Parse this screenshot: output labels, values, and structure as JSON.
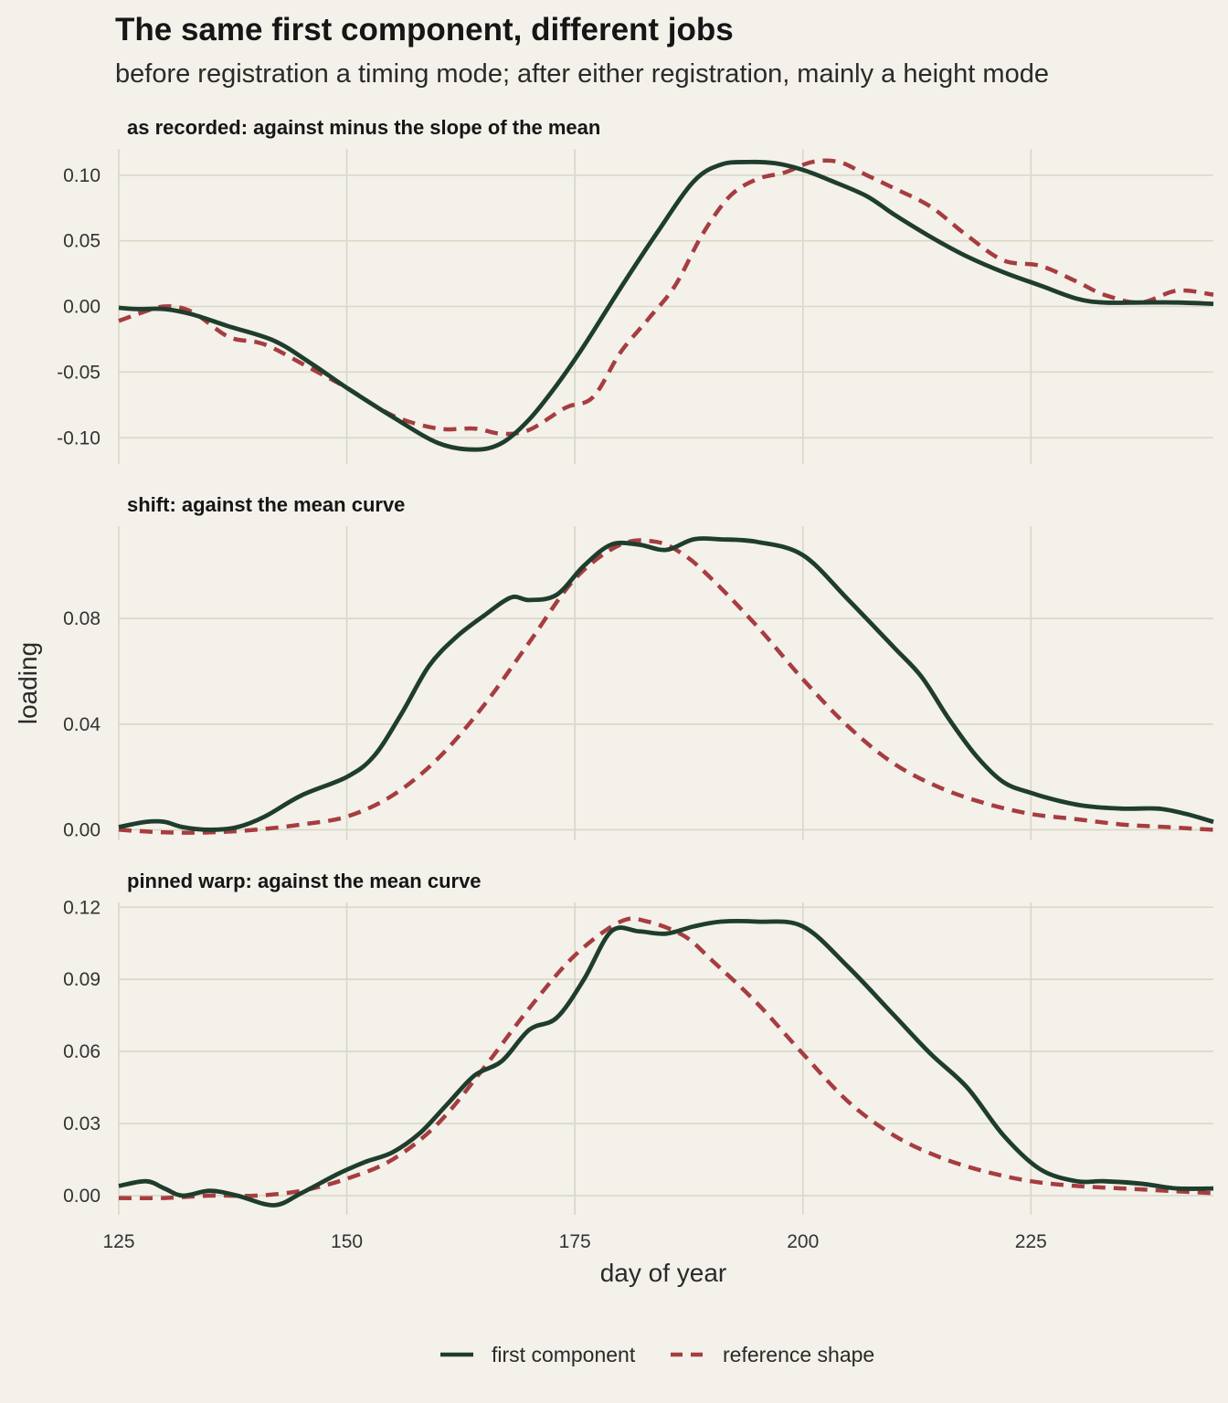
{
  "title": "The same first component, different jobs",
  "subtitle": "before registration a timing mode; after either registration, mainly a height mode",
  "colors": {
    "background": "#f3f1ea",
    "grid": "#d9d7c5",
    "first_component": "#1f3d2c",
    "reference_shape": "#a63d40"
  },
  "chart_data": {
    "type": "line",
    "xlabel": "day of year",
    "ylabel": "loading",
    "xlim": [
      125,
      245
    ],
    "x_ticks": [
      125,
      150,
      175,
      200,
      225
    ],
    "legend": {
      "placement": "bottom",
      "entries": [
        {
          "name": "first component",
          "style": "solid"
        },
        {
          "name": "reference shape",
          "style": "dashed"
        }
      ]
    },
    "panels": [
      {
        "strip": "as recorded: against minus the slope of the mean",
        "ylim": [
          -0.12,
          0.12
        ],
        "y_ticks": [
          -0.1,
          -0.05,
          0.0,
          0.05,
          0.1
        ],
        "y_tick_labels": [
          "-0.10",
          "-0.05",
          "0.00",
          "0.05",
          "0.10"
        ],
        "series": [
          {
            "name": "first component",
            "x": [
              125,
              127,
              130,
              133,
              137,
              142,
              146,
              150,
              155,
              160,
              164,
              167,
              170,
              173,
              176,
              180,
              184,
              188,
              191,
              194,
              197,
              200,
              203,
              207,
              210,
              214,
              218,
              222,
              226,
              230,
              233,
              237,
              241,
              245
            ],
            "y": [
              -0.001,
              -0.002,
              -0.002,
              -0.006,
              -0.015,
              -0.026,
              -0.043,
              -0.062,
              -0.084,
              -0.104,
              -0.109,
              -0.104,
              -0.086,
              -0.06,
              -0.03,
              0.014,
              0.056,
              0.095,
              0.108,
              0.11,
              0.109,
              0.104,
              0.096,
              0.084,
              0.07,
              0.053,
              0.038,
              0.026,
              0.016,
              0.006,
              0.003,
              0.003,
              0.003,
              0.002
            ]
          },
          {
            "name": "reference shape",
            "x": [
              125,
              127,
              130,
              133,
              137,
              140,
              142,
              146,
              150,
              155,
              160,
              164,
              167,
              170,
              174,
              177,
              180,
              183,
              186,
              189,
              192,
              195,
              198,
              201,
              204,
              207,
              210,
              214,
              218,
              222,
              226,
              230,
              233,
              237,
              241,
              245
            ],
            "y": [
              -0.011,
              -0.006,
              0.0,
              -0.004,
              -0.023,
              -0.027,
              -0.032,
              -0.047,
              -0.062,
              -0.083,
              -0.093,
              -0.093,
              -0.097,
              -0.094,
              -0.077,
              -0.069,
              -0.035,
              -0.01,
              0.016,
              0.055,
              0.084,
              0.097,
              0.102,
              0.11,
              0.11,
              0.1,
              0.09,
              0.076,
              0.054,
              0.035,
              0.031,
              0.019,
              0.009,
              0.003,
              0.012,
              0.009
            ]
          }
        ]
      },
      {
        "strip": "shift: against the mean curve",
        "ylim": [
          -0.004,
          0.115
        ],
        "y_ticks": [
          0.0,
          0.04,
          0.08
        ],
        "y_tick_labels": [
          "0.00",
          "0.04",
          "0.08"
        ],
        "series": [
          {
            "name": "first component",
            "x": [
              125,
              128,
              130,
              132,
              135,
              138,
              141,
              145,
              150,
              153,
              156,
              159,
              162,
              165,
              168,
              170,
              173,
              176,
              179,
              182,
              185,
              188,
              191,
              195,
              200,
              205,
              210,
              213,
              216,
              219,
              222,
              225,
              228,
              231,
              235,
              239,
              242,
              245
            ],
            "y": [
              0.001,
              0.003,
              0.003,
              0.001,
              0.0,
              0.001,
              0.005,
              0.013,
              0.02,
              0.028,
              0.044,
              0.062,
              0.073,
              0.081,
              0.088,
              0.087,
              0.089,
              0.1,
              0.108,
              0.108,
              0.106,
              0.11,
              0.11,
              0.109,
              0.104,
              0.087,
              0.069,
              0.058,
              0.042,
              0.028,
              0.018,
              0.014,
              0.011,
              0.009,
              0.008,
              0.008,
              0.006,
              0.003
            ]
          },
          {
            "name": "reference shape",
            "x": [
              125,
              130,
              135,
              140,
              145,
              150,
              155,
              160,
              165,
              170,
              175,
              180,
              184,
              187,
              190,
              195,
              200,
              205,
              210,
              215,
              220,
              225,
              230,
              235,
              240,
              245
            ],
            "y": [
              0.0,
              -0.001,
              -0.001,
              0.0,
              0.002,
              0.005,
              0.013,
              0.027,
              0.047,
              0.071,
              0.095,
              0.108,
              0.109,
              0.104,
              0.095,
              0.077,
              0.057,
              0.039,
              0.025,
              0.016,
              0.01,
              0.006,
              0.004,
              0.002,
              0.001,
              0.0
            ]
          }
        ]
      },
      {
        "strip": "pinned warp: against the mean curve",
        "ylim": [
          -0.008,
          0.122
        ],
        "y_ticks": [
          0.0,
          0.03,
          0.06,
          0.09,
          0.12
        ],
        "y_tick_labels": [
          "0.00",
          "0.03",
          "0.06",
          "0.09",
          "0.12"
        ],
        "series": [
          {
            "name": "first component",
            "x": [
              125,
              128,
              130,
              132,
              135,
              138,
              142,
              145,
              149,
              152,
              155,
              158,
              161,
              164,
              167,
              170,
              173,
              176,
              179,
              182,
              185,
              188,
              191,
              195,
              200,
              205,
              210,
              214,
              218,
              222,
              226,
              230,
              233,
              237,
              241,
              245
            ],
            "y": [
              0.004,
              0.006,
              0.003,
              0.0,
              0.002,
              0.0,
              -0.004,
              0.001,
              0.009,
              0.014,
              0.018,
              0.026,
              0.038,
              0.05,
              0.056,
              0.069,
              0.074,
              0.09,
              0.11,
              0.11,
              0.109,
              0.112,
              0.114,
              0.114,
              0.112,
              0.095,
              0.075,
              0.059,
              0.045,
              0.025,
              0.011,
              0.006,
              0.006,
              0.005,
              0.003,
              0.003
            ]
          },
          {
            "name": "reference shape",
            "x": [
              125,
              130,
              135,
              140,
              145,
              150,
              155,
              160,
              165,
              170,
              175,
              180,
              183,
              187,
              190,
              195,
              200,
              205,
              210,
              215,
              220,
              225,
              230,
              235,
              240,
              245
            ],
            "y": [
              -0.001,
              -0.001,
              0.0,
              0.0,
              0.002,
              0.007,
              0.015,
              0.03,
              0.053,
              0.078,
              0.1,
              0.114,
              0.114,
              0.108,
              0.098,
              0.08,
              0.059,
              0.039,
              0.025,
              0.016,
              0.01,
              0.006,
              0.004,
              0.003,
              0.002,
              0.001
            ]
          }
        ]
      }
    ]
  }
}
